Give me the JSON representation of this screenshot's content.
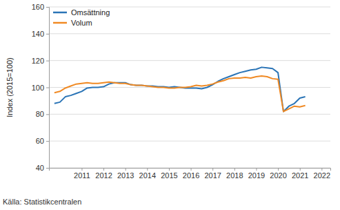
{
  "chart_data": {
    "type": "line",
    "y_label": "Index (2015=100)",
    "source": "Källa: Statistikcentralen",
    "x": [
      2009.75,
      2010.0,
      2010.25,
      2010.5,
      2010.75,
      2011.0,
      2011.25,
      2011.5,
      2011.75,
      2012.0,
      2012.25,
      2012.5,
      2012.75,
      2013.0,
      2013.25,
      2013.5,
      2013.75,
      2014.0,
      2014.25,
      2014.5,
      2014.75,
      2015.0,
      2015.25,
      2015.5,
      2015.75,
      2016.0,
      2016.25,
      2016.5,
      2016.75,
      2017.0,
      2017.25,
      2017.5,
      2017.75,
      2018.0,
      2018.25,
      2018.5,
      2018.75,
      2019.0,
      2019.25,
      2019.5,
      2019.75,
      2020.0,
      2020.25,
      2020.5,
      2020.75,
      2021.0,
      2021.25
    ],
    "series": [
      {
        "name": "Omsättning",
        "color": "#2a74b6",
        "values": [
          88,
          89,
          93,
          94,
          95.5,
          97,
          99.5,
          100,
          100,
          100.5,
          102.5,
          103.5,
          103.5,
          103.5,
          102,
          101.5,
          101.5,
          101,
          101,
          100.5,
          100.5,
          100,
          100.5,
          100,
          99.5,
          99.5,
          99.5,
          99,
          100,
          102,
          104.5,
          106.5,
          108,
          109.5,
          111,
          112,
          113,
          113.5,
          115,
          114.5,
          114,
          111,
          82,
          86,
          88,
          92,
          93
        ]
      },
      {
        "name": "Volum",
        "color": "#f08a24",
        "values": [
          96,
          97,
          99.5,
          101,
          102.5,
          103,
          103.5,
          103,
          103,
          103.5,
          104,
          103.5,
          103,
          103,
          102,
          101.5,
          101.5,
          101,
          100.5,
          100,
          100,
          99.5,
          99.5,
          100,
          100,
          100.5,
          101.5,
          101,
          101.5,
          102.5,
          104,
          105,
          106.5,
          107,
          107,
          107.5,
          107,
          108,
          108.5,
          108,
          106.5,
          106,
          82,
          84,
          86,
          85.5,
          86.5
        ]
      }
    ],
    "xlim": [
      2009.5,
      2022.4
    ],
    "xticks": [
      2011,
      2012,
      2013,
      2014,
      2015,
      2016,
      2017,
      2018,
      2019,
      2020,
      2021,
      2022
    ],
    "ylim": [
      40,
      160
    ],
    "yticks": [
      40,
      60,
      80,
      100,
      120,
      140,
      160
    ],
    "grid": true,
    "legend": "top-left"
  }
}
